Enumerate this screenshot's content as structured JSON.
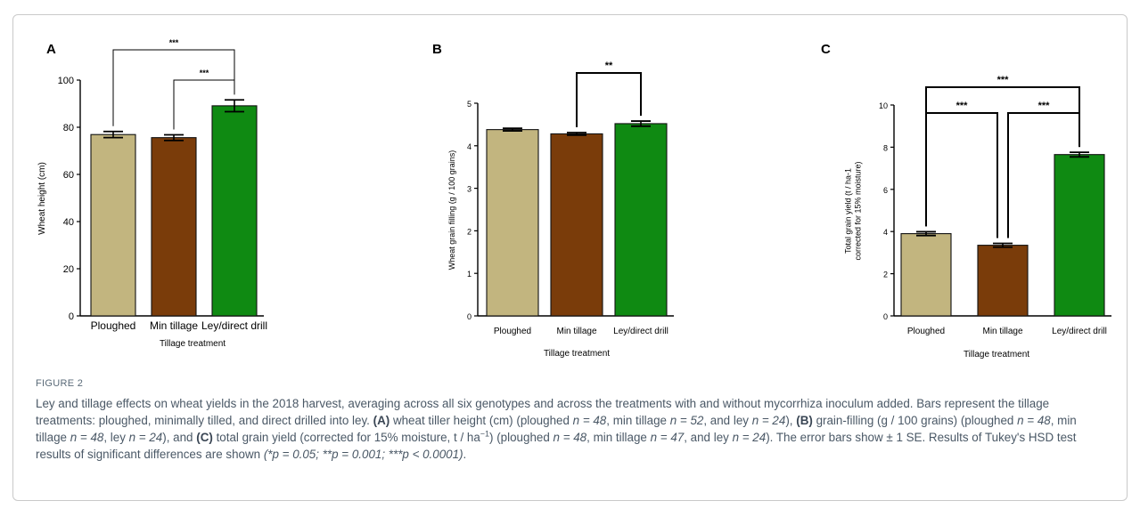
{
  "figure": {
    "label": "FIGURE 2",
    "caption": {
      "intro": "Ley and tillage effects on wheat yields in the 2018 harvest, averaging across all six genotypes and across the treatments with and without mycorrhiza inoculum added. Bars represent the tillage treatments: ploughed, minimally tilled, and direct drilled into ley.",
      "a_tag": "(A)",
      "a_text": "wheat tiller height (cm) (ploughed",
      "a_n1": "n = 48",
      "a_sep1": ", min tillage",
      "a_n2": "n = 52",
      "a_sep2": ", and ley",
      "a_n3": "n = 24",
      "a_end": "),",
      "b_tag": "(B)",
      "b_text": "grain-filling (g / 100 grains) (ploughed",
      "b_n1": "n = 48",
      "b_sep1": ", min tillage",
      "b_n2": "n = 48",
      "b_sep2": ", ley",
      "b_n3": "n = 24",
      "b_end": "), and",
      "c_tag": "(C)",
      "c_text": "total grain yield (corrected for 15% moisture, t / ha",
      "c_sup": "−1",
      "c_text2": ") (ploughed",
      "c_n1": "n = 48",
      "c_sep1": ", min tillage",
      "c_n2": "n = 47",
      "c_sep2": ", and ley",
      "c_n3": "n = 24",
      "c_end": "). The error bars show ± 1 SE. Results of Tukey's HSD test results of significant differences are shown",
      "sig": "(*p = 0.05; **p = 0.001; ***p < 0.0001)",
      "final": "."
    }
  },
  "colors": {
    "ploughed": "#c2b57f",
    "min_tillage": "#7a3c0a",
    "ley": "#0f8a12"
  },
  "chart_data": [
    {
      "type": "bar",
      "panel": "A",
      "categories": [
        "Ploughed",
        "Min tillage",
        "Ley/direct drill"
      ],
      "values": [
        76.9,
        75.6,
        89.1
      ],
      "errors": [
        1.3,
        1.2,
        2.5
      ],
      "xlabel": "Tillage treatment",
      "ylabel": "Wheat height (cm)",
      "ylim": [
        0,
        100
      ],
      "yticks": [
        0,
        20,
        40,
        60,
        80,
        100
      ],
      "significance": [
        {
          "from": 0,
          "to": 2,
          "label": "***"
        },
        {
          "from": 1,
          "to": 2,
          "label": "***"
        }
      ]
    },
    {
      "type": "bar",
      "panel": "B",
      "categories": [
        "Ploughed",
        "Min tillage",
        "Ley/direct drill"
      ],
      "values": [
        4.38,
        4.28,
        4.52
      ],
      "errors": [
        0.03,
        0.03,
        0.06
      ],
      "xlabel": "Tillage treatment",
      "ylabel": "Wheat grain filling (g / 100 grains)",
      "ylim": [
        0,
        5
      ],
      "yticks": [
        0,
        1,
        2,
        3,
        4,
        5
      ],
      "significance": [
        {
          "from": 1,
          "to": 2,
          "label": "**"
        }
      ]
    },
    {
      "type": "bar",
      "panel": "C",
      "categories": [
        "Ploughed",
        "Min tillage",
        "Ley/direct drill"
      ],
      "values": [
        3.9,
        3.35,
        7.65
      ],
      "errors": [
        0.09,
        0.09,
        0.11
      ],
      "xlabel": "Tillage treatment",
      "ylabel": "Total grain yield (t / ha-1 corrected for 15% moisture)",
      "ylabel_lines": [
        "Total grain yield (t / ha-1",
        "corrected for 15% moisture)"
      ],
      "ylim": [
        0,
        10
      ],
      "yticks": [
        0,
        2,
        4,
        6,
        8,
        10
      ],
      "significance": [
        {
          "from": 0,
          "to": 2,
          "label": "***"
        },
        {
          "from": 0,
          "to": 1,
          "label": "***"
        },
        {
          "from": 1,
          "to": 2,
          "label": "***"
        }
      ]
    }
  ]
}
